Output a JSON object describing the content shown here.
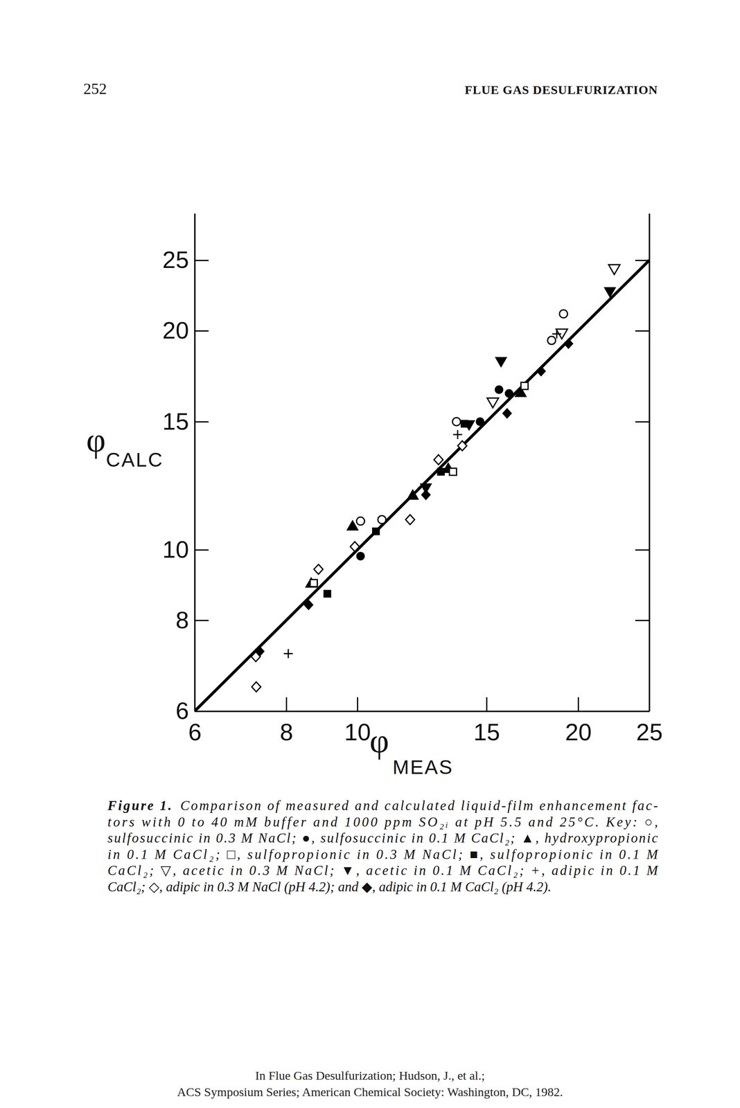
{
  "page": {
    "number": "252",
    "running_head": "FLUE GAS DESULFURIZATION",
    "figure_label": "Figure 1.",
    "caption_lines": [
      "Comparison of measured and calculated liquid-film enhancement fac-",
      "tors with 0 to 40 mM buffer and 1000 ppm SO₂ᵢ at pH 5.5 and 25°C. Key: ○,",
      "sulfosuccinic in 0.3 M NaCl; ●, sulfosuccinic in 0.1 M CaCl₂; ▲, hydroxypropionic",
      "in 0.1 M CaCl₂; □, sulfopropionic in 0.3 M NaCl; ■, sulfopropionic in 0.1 M",
      "CaCl₂; ▽, acetic in 0.3 M NaCl; ▼, acetic in 0.1 M CaCl₂; +, adipic in 0.1 M",
      "CaCl₂; ◇, adipic in 0.3 M NaCl (pH 4.2); and ◆, adipic in 0.1 M CaCl₂ (pH 4.2)."
    ],
    "footer": [
      "In Flue Gas Desulfurization; Hudson, J., et al.;",
      "ACS Symposium Series; American Chemical Society: Washington, DC, 1982."
    ]
  },
  "chart_data": {
    "type": "scatter",
    "log": true,
    "grid": false,
    "xlabel": "φMEAS",
    "ylabel": "φCALC",
    "xlim": [
      6,
      25
    ],
    "xticks": [
      6,
      8,
      10,
      15,
      20,
      25
    ],
    "ylim": [
      6,
      29
    ],
    "yticks": [
      6,
      8,
      10,
      15,
      20,
      25
    ],
    "series": [
      {
        "type": "line",
        "color": "#000000",
        "line_style": "solid",
        "x": [
          6,
          25
        ],
        "values": [
          6,
          25
        ]
      },
      {
        "marker": "circle-open",
        "color": "#000000",
        "x": [
          10.1,
          10.8,
          13.65,
          18.4,
          19.1
        ],
        "values": [
          10.95,
          11.0,
          15.0,
          19.4,
          21.1
        ]
      },
      {
        "marker": "circle",
        "color": "#000000",
        "x": [
          10.1,
          14.7,
          15.6,
          16.1
        ],
        "values": [
          9.8,
          15.0,
          16.6,
          16.4
        ]
      },
      {
        "marker": "triangle",
        "color": "#000000",
        "x": [
          8.65,
          9.85,
          11.9,
          13.3,
          16.7
        ],
        "values": [
          8.97,
          10.75,
          11.85,
          12.9,
          16.4
        ]
      },
      {
        "marker": "square-open",
        "color": "#000000",
        "x": [
          8.72,
          13.5,
          16.9
        ],
        "values": [
          9.0,
          12.8,
          16.8
        ]
      },
      {
        "marker": "square",
        "color": "#000000",
        "x": [
          9.1,
          10.6,
          13.0,
          14.0
        ],
        "values": [
          8.7,
          10.6,
          12.8,
          14.9
        ]
      },
      {
        "marker": "triangle-down-open",
        "color": "#000000",
        "x": [
          15.3,
          19.0,
          22.4
        ],
        "values": [
          16.0,
          19.9,
          24.4
        ]
      },
      {
        "marker": "triangle-down",
        "color": "#000000",
        "x": [
          12.4,
          14.2,
          15.7,
          22.1
        ],
        "values": [
          12.2,
          14.9,
          18.2,
          22.7
        ]
      },
      {
        "marker": "plus",
        "color": "#000000",
        "x": [
          8.05,
          13.7,
          18.7
        ],
        "values": [
          7.2,
          14.4,
          19.8
        ]
      },
      {
        "marker": "diamond-open",
        "color": "#000000",
        "x": [
          7.27,
          7.28,
          8.85,
          9.92,
          11.8,
          12.9,
          13.9
        ],
        "values": [
          7.13,
          6.48,
          9.4,
          10.1,
          11.0,
          13.3,
          13.9
        ]
      },
      {
        "marker": "diamond",
        "color": "#000000",
        "x": [
          7.36,
          8.58,
          12.4,
          16.0,
          17.8,
          19.4
        ],
        "values": [
          7.25,
          8.4,
          11.9,
          15.4,
          17.6,
          19.2
        ]
      }
    ]
  }
}
